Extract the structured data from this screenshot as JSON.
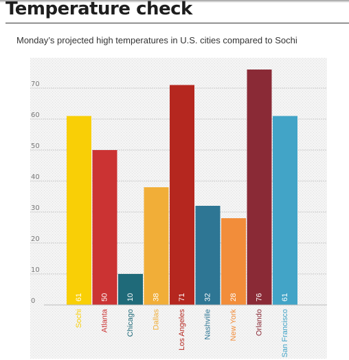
{
  "header": {
    "title": "Temperature check",
    "subtitle": "Monday’s projected high temperatures in U.S. cities compared to Sochi"
  },
  "chart_data": {
    "type": "bar",
    "categories": [
      "Sochi",
      "Atlanta",
      "Chicago",
      "Dallas",
      "Los Angeles",
      "Nashville",
      "New York",
      "Orlando",
      "San Francisco"
    ],
    "values": [
      61,
      50,
      10,
      38,
      71,
      32,
      28,
      76,
      61
    ],
    "value_labels": [
      "61",
      "50",
      "10",
      "38",
      "71",
      "32",
      "28",
      "76",
      "61"
    ],
    "colors": [
      "#f9cf06",
      "#cb3333",
      "#1f6a79",
      "#f1ae38",
      "#b5271f",
      "#2e7694",
      "#f28d3a",
      "#8a2a36",
      "#42a4c7"
    ],
    "y_ticks": [
      "0",
      "10",
      "20",
      "30",
      "40",
      "50",
      "60",
      "70"
    ],
    "ylim": [
      0,
      80
    ],
    "grid": true,
    "xlabel": "",
    "ylabel": ""
  }
}
